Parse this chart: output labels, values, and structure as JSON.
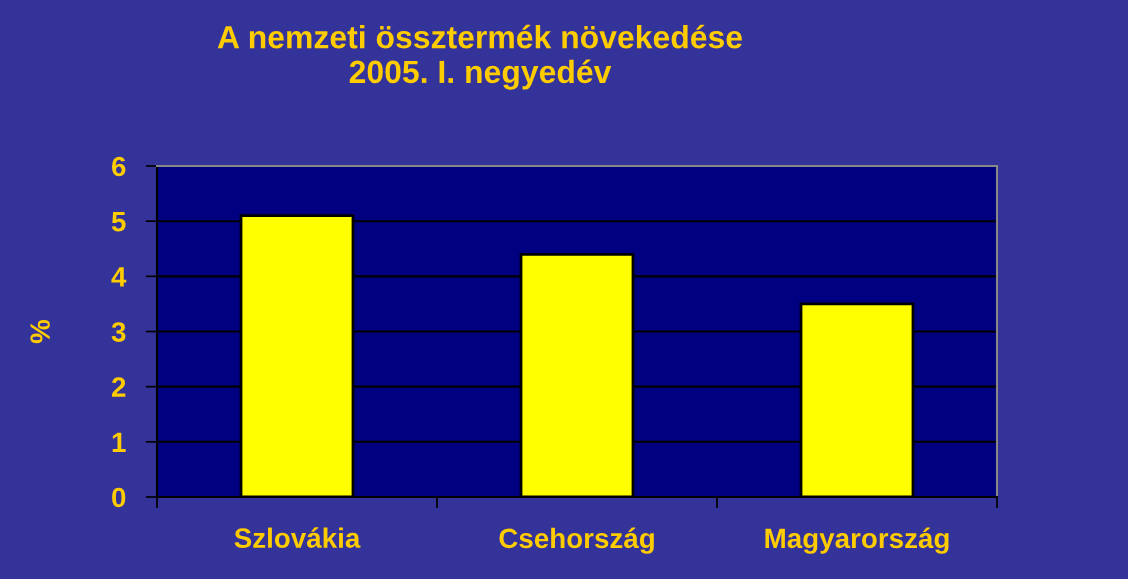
{
  "chart_data": {
    "type": "bar",
    "title": "A nemzeti össztermék növekedése\n2005. I. negyedév",
    "ylabel": "%",
    "categories": [
      "Szlovákia",
      "Csehország",
      "Magyarország"
    ],
    "values": [
      5.1,
      4.4,
      3.5
    ],
    "color": "#ffff00",
    "ylim": [
      0,
      6
    ],
    "yticks": [
      0,
      1,
      2,
      3,
      4,
      5,
      6
    ],
    "grid": "y",
    "legend": false
  }
}
